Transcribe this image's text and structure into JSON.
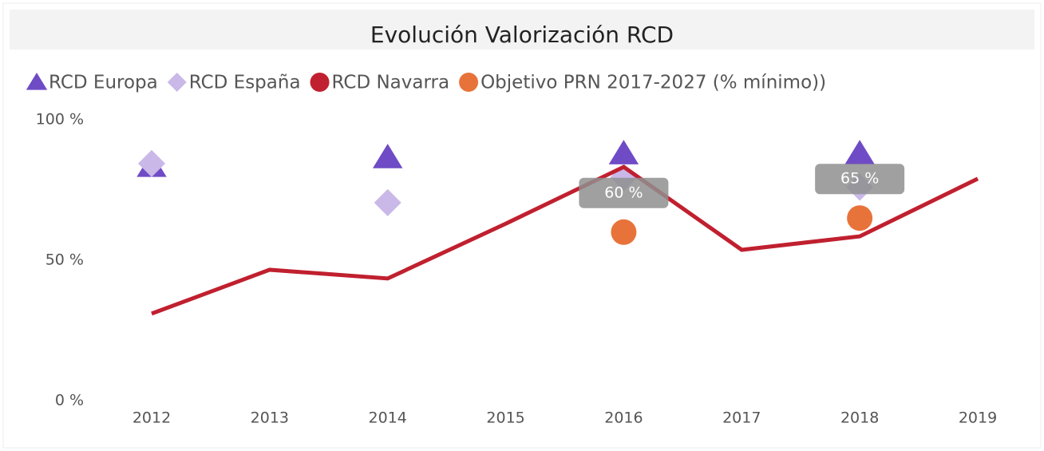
{
  "chart_data": {
    "type": "line",
    "title": "Evolución Valorización RCD",
    "categories": [
      "2012",
      "2013",
      "2014",
      "2015",
      "2016",
      "2017",
      "2018",
      "2019"
    ],
    "ylim": [
      0,
      100
    ],
    "yticks": [
      {
        "value": 0,
        "label": "0 %"
      },
      {
        "value": 50,
        "label": "50 %"
      },
      {
        "value": 100,
        "label": "100 %"
      }
    ],
    "grid": false,
    "legend": "top-left",
    "series": [
      {
        "name": "RCD Europa",
        "color": "#6f4bc6",
        "marker": "triangle",
        "values": [
          83.5,
          null,
          86.6,
          null,
          88,
          null,
          88,
          null
        ]
      },
      {
        "name": "RCD España",
        "color": "#c9b8e8",
        "marker": "diamond",
        "values": [
          84.4,
          null,
          70.5,
          null,
          79.5,
          null,
          76,
          null
        ]
      },
      {
        "name": "RCD Navarra",
        "color": "#c0202f",
        "marker": "line",
        "values": [
          31,
          46.6,
          43.5,
          63,
          83.2,
          53.7,
          58.5,
          79
        ]
      },
      {
        "name": "Objetivo PRN 2017-2027 (% mínimo))",
        "color": "#e8733a",
        "marker": "circle",
        "values": [
          null,
          null,
          null,
          null,
          60,
          null,
          65,
          null
        ],
        "value_labels": [
          null,
          null,
          null,
          null,
          "60 %",
          null,
          "65 %",
          null
        ]
      }
    ]
  }
}
